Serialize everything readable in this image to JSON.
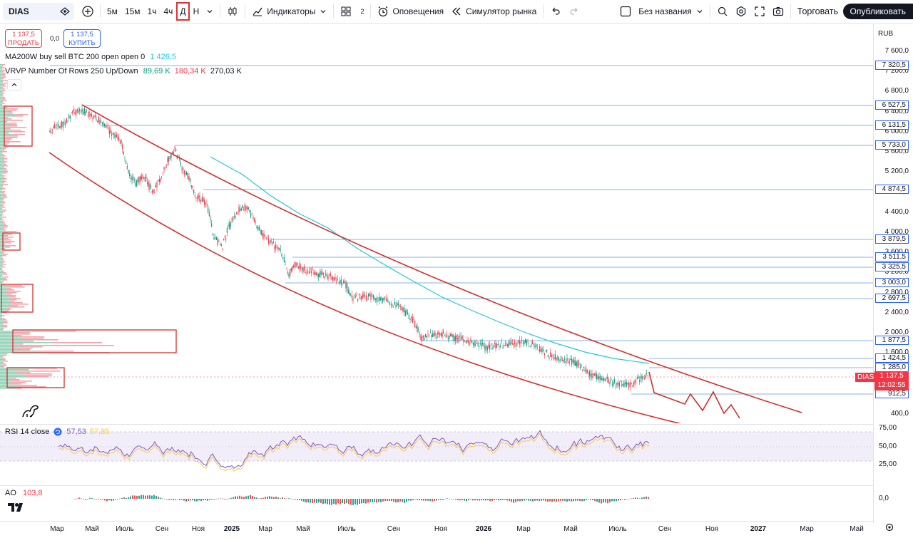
{
  "toolbar": {
    "symbol": "DIAS",
    "intervals": [
      "5м",
      "15м",
      "1ч",
      "4ч",
      "Д",
      "Н"
    ],
    "active_interval": "Д",
    "indicators_label": "Индикаторы",
    "layouts_count": "2",
    "alerts_label": "Оповещения",
    "replay_label": "Симулятор рынка",
    "layout_name": "Без названия",
    "trade_label": "Торговать",
    "publish_label": "Опубликовать"
  },
  "legend": {
    "sell_price": "1 137,5",
    "sell_label": "ПРОДАТЬ",
    "spread": "0,0",
    "buy_price": "1 137,5",
    "buy_label": "КУПИТЬ",
    "ma_label": "MA200W buy sell BTC 200 open open 0",
    "ma_value": "1 426,5",
    "vrvp_label": "VRVP Number Of Rows 250 Up/Down",
    "vrvp_up": "89,69 K",
    "vrvp_down": "180,34 K",
    "vrvp_total": "270,03 K"
  },
  "price_scale": {
    "currency": "RUB",
    "ticks": [
      "7 600,0",
      "7 200,0",
      "6 800,0",
      "6 400,0",
      "6 000,0",
      "5 600,0",
      "5 200,0",
      "4 800,0",
      "4 400,0",
      "4 000,0",
      "3 600,0",
      "3 200,0",
      "2 800,0",
      "2 400,0",
      "2 000,0",
      "1 600,0",
      "400,0"
    ],
    "levels": [
      "7 320,5",
      "6 527,5",
      "6 131,5",
      "5 733,0",
      "4 874,5",
      "3 879,5",
      "3 511,5",
      "3 325,5",
      "3 003,0",
      "2 697,5",
      "1 877,5",
      "1 424,5",
      "1 285,0",
      "912,5"
    ],
    "last_symbol": "DIAS",
    "last_price": "1 137,5",
    "countdown": "12:02:55"
  },
  "rsi": {
    "label": "RSI 14 close",
    "value": "57,53",
    "value_ma": "57,85",
    "ticks": [
      "75,00",
      "50,00",
      "25,00"
    ]
  },
  "ao": {
    "label": "AO",
    "value": "103,8",
    "tick": "0,0"
  },
  "time_axis": {
    "ticks": [
      "Мар",
      "Май",
      "Июль",
      "Сен",
      "Ноя",
      "2025",
      "Мар",
      "Май",
      "Июль",
      "Сен",
      "Ноя",
      "2026",
      "Мар",
      "Май",
      "Июль",
      "Сен",
      "Ноя",
      "2027",
      "Мар",
      "Май"
    ]
  },
  "colors": {
    "accent": "#2962ff",
    "up": "#089981",
    "down": "#f23645",
    "channel": "#d32f2f",
    "ma": "#26c6da",
    "rsi": "#7e57c2"
  }
}
